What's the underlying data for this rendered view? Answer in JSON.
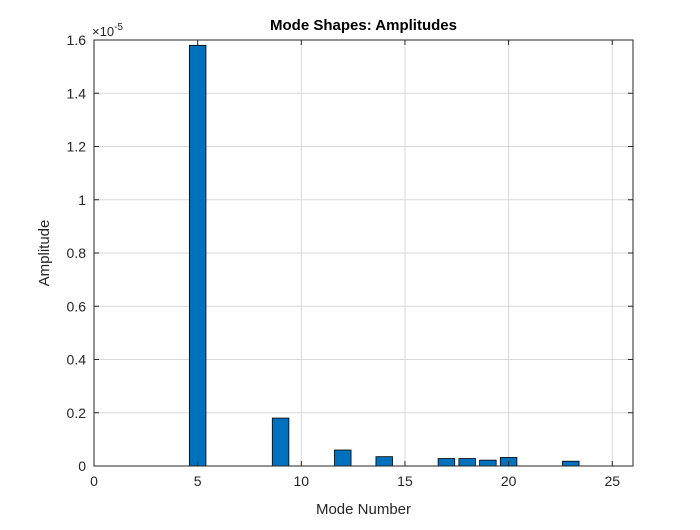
{
  "chart_data": {
    "type": "bar",
    "title": "Mode Shapes: Amplitudes",
    "xlabel": "Mode Number",
    "ylabel": "Amplitude",
    "y_exponent_base": "×10",
    "y_exponent_power": "-5",
    "xlim": [
      0,
      26
    ],
    "ylim": [
      0,
      1.6
    ],
    "xticks": [
      0,
      5,
      10,
      15,
      20,
      25
    ],
    "yticks": [
      0,
      0.2,
      0.4,
      0.6,
      0.8,
      1,
      1.2,
      1.4,
      1.6
    ],
    "grid": true,
    "bar_color": "#0072BD",
    "x": [
      5,
      9,
      12,
      14,
      17,
      18,
      19,
      20,
      23
    ],
    "values": [
      1.58,
      0.18,
      0.06,
      0.035,
      0.028,
      0.028,
      0.022,
      0.032,
      0.018
    ]
  }
}
